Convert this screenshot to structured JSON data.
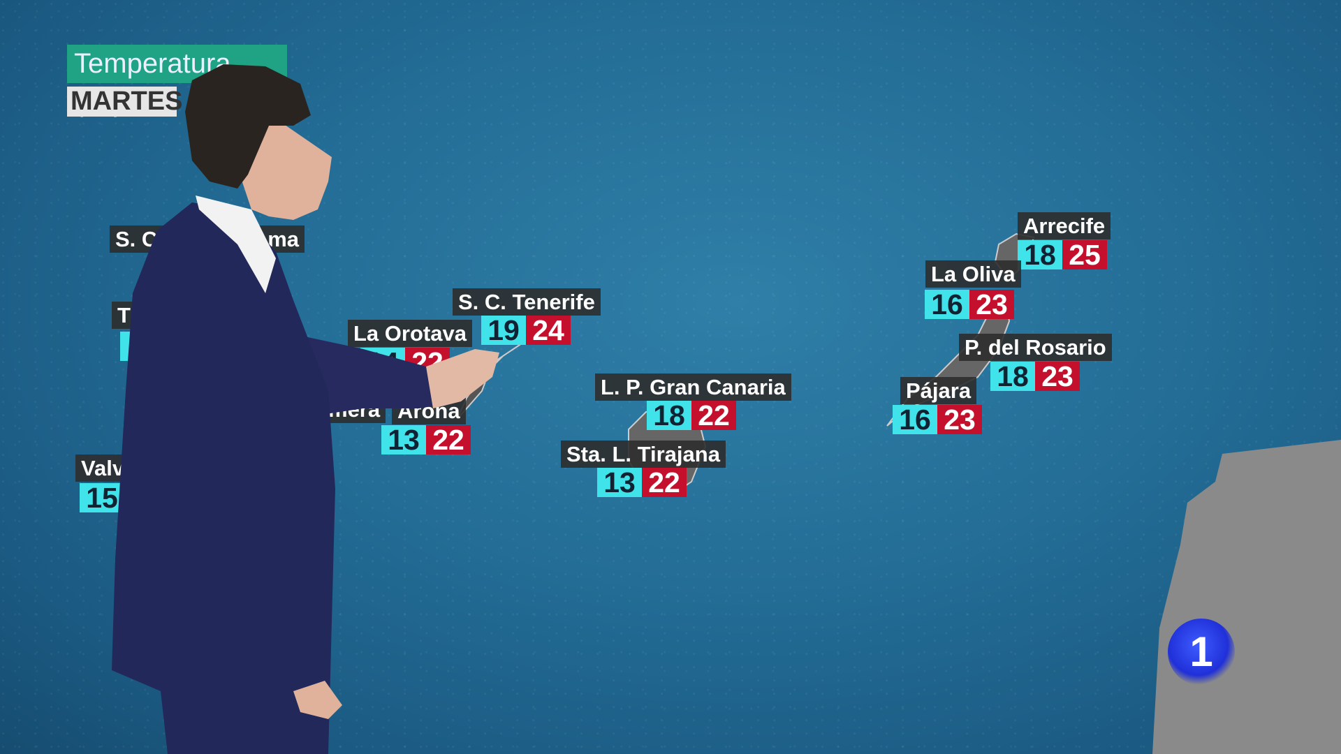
{
  "header": {
    "title": "Temperatura (ºC)",
    "day": "MARTES"
  },
  "colors": {
    "min": "#3fe3e9",
    "max": "#c4102c",
    "title_bg": "#1fa384",
    "label_bg": "#2d2d2d",
    "land": "#8a8a8a"
  },
  "cities": [
    {
      "name": "S. C",
      "name_tail": "ma"
    },
    {
      "name": "T"
    },
    {
      "name": "La Orotava",
      "min": "14",
      "max": "22"
    },
    {
      "name": "S. C. Tenerife",
      "min": "19",
      "max": "24"
    },
    {
      "name": "mera"
    },
    {
      "name": "Arona",
      "min": "13",
      "max": "22"
    },
    {
      "name": "L. P. Gran Canaria",
      "min": "18",
      "max": "22"
    },
    {
      "name": "Sta. L. Tirajana",
      "min": "13",
      "max": "22"
    },
    {
      "name": "Valv",
      "min": "15"
    },
    {
      "name": "Arrecife",
      "min": "18",
      "max": "25"
    },
    {
      "name": "La Oliva",
      "min": "16",
      "max": "23"
    },
    {
      "name": "P. del Rosario",
      "min": "18",
      "max": "23"
    },
    {
      "name": "Pájara",
      "min": "16",
      "max": "23"
    }
  ],
  "logo": {
    "text": "1"
  }
}
